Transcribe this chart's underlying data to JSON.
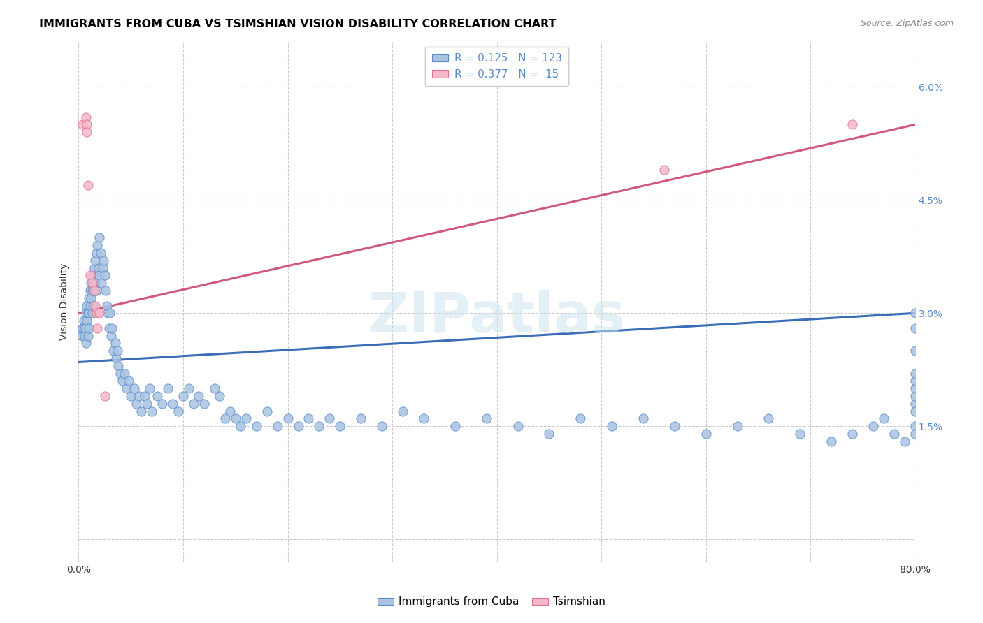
{
  "title": "IMMIGRANTS FROM CUBA VS TSIMSHIAN VISION DISABILITY CORRELATION CHART",
  "source": "Source: ZipAtlas.com",
  "ylabel": "Vision Disability",
  "yticks": [
    0.0,
    0.015,
    0.03,
    0.045,
    0.06
  ],
  "ytick_labels": [
    "",
    "1.5%",
    "3.0%",
    "4.5%",
    "6.0%"
  ],
  "xmin": 0.0,
  "xmax": 0.8,
  "ymin": -0.003,
  "ymax": 0.066,
  "blue_color": "#aac4e2",
  "blue_edge_color": "#5b8cc8",
  "blue_line_color": "#3a6db5",
  "pink_color": "#f5b8c8",
  "pink_edge_color": "#e07090",
  "pink_line_color": "#d05878",
  "legend_R_blue": "0.125",
  "legend_N_blue": "123",
  "legend_R_pink": "0.377",
  "legend_N_pink": "15",
  "watermark": "ZIPatlas",
  "blue_scatter_x": [
    0.003,
    0.004,
    0.005,
    0.006,
    0.006,
    0.007,
    0.007,
    0.007,
    0.008,
    0.008,
    0.009,
    0.009,
    0.01,
    0.01,
    0.01,
    0.011,
    0.011,
    0.012,
    0.012,
    0.013,
    0.013,
    0.014,
    0.014,
    0.015,
    0.015,
    0.016,
    0.016,
    0.017,
    0.017,
    0.018,
    0.019,
    0.02,
    0.02,
    0.021,
    0.022,
    0.023,
    0.024,
    0.025,
    0.026,
    0.027,
    0.028,
    0.029,
    0.03,
    0.031,
    0.032,
    0.033,
    0.035,
    0.036,
    0.037,
    0.038,
    0.04,
    0.042,
    0.044,
    0.046,
    0.048,
    0.05,
    0.053,
    0.055,
    0.058,
    0.06,
    0.063,
    0.065,
    0.068,
    0.07,
    0.075,
    0.08,
    0.085,
    0.09,
    0.095,
    0.1,
    0.105,
    0.11,
    0.115,
    0.12,
    0.13,
    0.135,
    0.14,
    0.145,
    0.15,
    0.155,
    0.16,
    0.17,
    0.18,
    0.19,
    0.2,
    0.21,
    0.22,
    0.23,
    0.24,
    0.25,
    0.27,
    0.29,
    0.31,
    0.33,
    0.36,
    0.39,
    0.42,
    0.45,
    0.48,
    0.51,
    0.54,
    0.57,
    0.6,
    0.63,
    0.66,
    0.69,
    0.72,
    0.74,
    0.76,
    0.77,
    0.78,
    0.79,
    0.8,
    0.8,
    0.8,
    0.8,
    0.8,
    0.8,
    0.8,
    0.8,
    0.8,
    0.8,
    0.8
  ],
  "blue_scatter_y": [
    0.027,
    0.028,
    0.029,
    0.028,
    0.027,
    0.03,
    0.028,
    0.026,
    0.031,
    0.029,
    0.03,
    0.027,
    0.032,
    0.03,
    0.028,
    0.033,
    0.031,
    0.034,
    0.032,
    0.033,
    0.03,
    0.035,
    0.031,
    0.036,
    0.033,
    0.037,
    0.034,
    0.038,
    0.033,
    0.039,
    0.036,
    0.04,
    0.035,
    0.038,
    0.034,
    0.036,
    0.037,
    0.035,
    0.033,
    0.031,
    0.03,
    0.028,
    0.03,
    0.027,
    0.028,
    0.025,
    0.026,
    0.024,
    0.025,
    0.023,
    0.022,
    0.021,
    0.022,
    0.02,
    0.021,
    0.019,
    0.02,
    0.018,
    0.019,
    0.017,
    0.019,
    0.018,
    0.02,
    0.017,
    0.019,
    0.018,
    0.02,
    0.018,
    0.017,
    0.019,
    0.02,
    0.018,
    0.019,
    0.018,
    0.02,
    0.019,
    0.016,
    0.017,
    0.016,
    0.015,
    0.016,
    0.015,
    0.017,
    0.015,
    0.016,
    0.015,
    0.016,
    0.015,
    0.016,
    0.015,
    0.016,
    0.015,
    0.017,
    0.016,
    0.015,
    0.016,
    0.015,
    0.014,
    0.016,
    0.015,
    0.016,
    0.015,
    0.014,
    0.015,
    0.016,
    0.014,
    0.013,
    0.014,
    0.015,
    0.016,
    0.014,
    0.013,
    0.018,
    0.015,
    0.014,
    0.017,
    0.019,
    0.02,
    0.021,
    0.022,
    0.025,
    0.028,
    0.03
  ],
  "pink_scatter_x": [
    0.004,
    0.007,
    0.008,
    0.008,
    0.009,
    0.011,
    0.013,
    0.015,
    0.016,
    0.017,
    0.018,
    0.02,
    0.025,
    0.56,
    0.74
  ],
  "pink_scatter_y": [
    0.055,
    0.056,
    0.055,
    0.054,
    0.047,
    0.035,
    0.034,
    0.033,
    0.031,
    0.03,
    0.028,
    0.03,
    0.019,
    0.049,
    0.055
  ],
  "blue_trend_x": [
    0.0,
    0.8
  ],
  "blue_trend_y": [
    0.0235,
    0.03
  ],
  "pink_trend_x": [
    0.0,
    0.8
  ],
  "pink_trend_y": [
    0.03,
    0.055
  ],
  "title_fontsize": 11.5,
  "label_fontsize": 10,
  "tick_fontsize": 10,
  "grid_color": "#cccccc",
  "xtick_vals": [
    0.0,
    0.1,
    0.2,
    0.3,
    0.4,
    0.5,
    0.6,
    0.7,
    0.8
  ]
}
